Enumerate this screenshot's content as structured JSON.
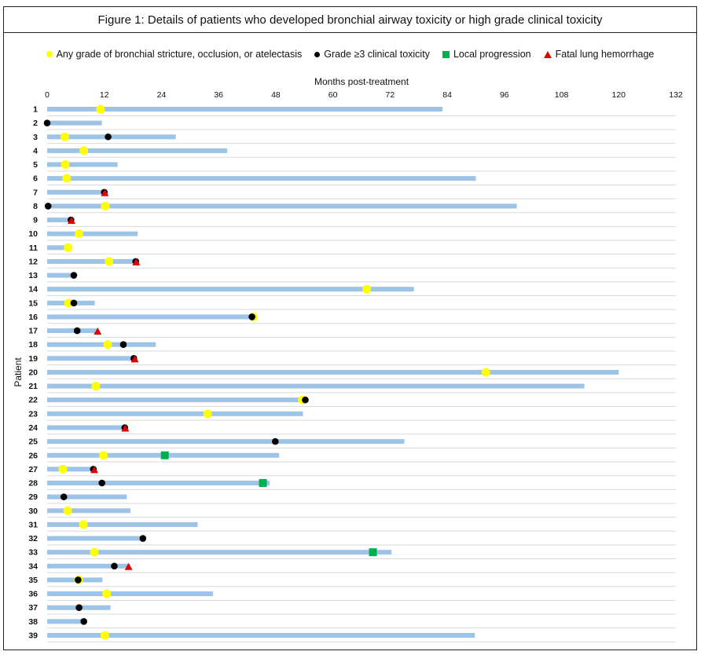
{
  "title": "Figure 1: Details of patients who developed bronchial airway toxicity or high grade clinical toxicity",
  "legend": {
    "items": [
      {
        "label": "Any grade of bronchial stricture, occlusion, or atelectasis",
        "color": "#ffff00",
        "shape": "circle"
      },
      {
        "label": "Grade ≥3 clinical toxicity",
        "color": "#000000",
        "shape": "circle"
      },
      {
        "label": "Local progression",
        "color": "#00b050",
        "shape": "square"
      },
      {
        "label": "Fatal lung hemorrhage",
        "color": "#e00000",
        "shape": "triangle"
      }
    ]
  },
  "chart_data": {
    "type": "bar",
    "orientation": "horizontal",
    "xlabel": "Months post-treatment",
    "ylabel": "Patient",
    "xlim": [
      0,
      132
    ],
    "xticks": [
      "0",
      "12",
      "24",
      "36",
      "48",
      "60",
      "72",
      "84",
      "96",
      "108",
      "120",
      "132"
    ],
    "x_axis_position": "top",
    "bar_color": "#9dc3e6",
    "gridlines": true,
    "patients": [
      {
        "id": "1",
        "followup": 83,
        "stricture": [
          11.2
        ]
      },
      {
        "id": "2",
        "followup": 11.5,
        "grade3": [
          0
        ]
      },
      {
        "id": "3",
        "followup": 27,
        "stricture": [
          3.7
        ],
        "grade3": [
          12.8
        ]
      },
      {
        "id": "4",
        "followup": 37.8,
        "stricture": [
          7.7
        ]
      },
      {
        "id": "5",
        "followup": 14.8,
        "stricture": [
          3.8
        ]
      },
      {
        "id": "6",
        "followup": 90,
        "stricture": [
          4.1
        ]
      },
      {
        "id": "7",
        "followup": 12.2,
        "grade3": [
          12
        ],
        "hemorrhage": [
          12.1
        ]
      },
      {
        "id": "8",
        "followup": 98.6,
        "stricture": [
          12.2
        ],
        "grade3": [
          0.2
        ]
      },
      {
        "id": "9",
        "followup": 5.2,
        "grade3": [
          5
        ],
        "hemorrhage": [
          5.1
        ]
      },
      {
        "id": "10",
        "followup": 19,
        "stricture": [
          6.7
        ]
      },
      {
        "id": "11",
        "followup": 4.5,
        "stricture": [
          4.4
        ]
      },
      {
        "id": "12",
        "followup": 18.7,
        "stricture": [
          13
        ],
        "grade3": [
          18.6
        ],
        "hemorrhage": [
          18.7
        ]
      },
      {
        "id": "13",
        "followup": 5.6,
        "grade3": [
          5.6
        ]
      },
      {
        "id": "14",
        "followup": 77,
        "stricture": [
          67.1
        ]
      },
      {
        "id": "15",
        "followup": 10,
        "stricture": [
          4.5
        ],
        "grade3": [
          5.6
        ]
      },
      {
        "id": "16",
        "followup": 43.2,
        "stricture": [
          43.3
        ],
        "grade3": [
          43
        ]
      },
      {
        "id": "17",
        "followup": 10.8,
        "grade3": [
          6.3
        ],
        "hemorrhage": [
          10.6
        ]
      },
      {
        "id": "18",
        "followup": 22.8,
        "stricture": [
          12.7
        ],
        "grade3": [
          16
        ]
      },
      {
        "id": "19",
        "followup": 18.4,
        "grade3": [
          18.2
        ],
        "hemorrhage": [
          18.4
        ]
      },
      {
        "id": "20",
        "followup": 120,
        "stricture": [
          92.1
        ]
      },
      {
        "id": "21",
        "followup": 112.8,
        "stricture": [
          10.2
        ]
      },
      {
        "id": "22",
        "followup": 53.7,
        "stricture": [
          53.6
        ],
        "grade3": [
          54.2
        ]
      },
      {
        "id": "23",
        "followup": 53.7,
        "stricture": [
          33.7
        ]
      },
      {
        "id": "24",
        "followup": 16.4,
        "grade3": [
          16.3
        ],
        "hemorrhage": [
          16.4
        ]
      },
      {
        "id": "25",
        "followup": 75,
        "grade3": [
          47.9
        ]
      },
      {
        "id": "26",
        "followup": 48.7,
        "stricture": [
          11.8
        ],
        "progression": [
          24.7
        ]
      },
      {
        "id": "27",
        "followup": 10,
        "stricture": [
          3.3
        ],
        "grade3": [
          9.7
        ],
        "hemorrhage": [
          9.9
        ]
      },
      {
        "id": "28",
        "followup": 46.7,
        "grade3": [
          11.5
        ],
        "progression": [
          45.3
        ]
      },
      {
        "id": "29",
        "followup": 16.7,
        "grade3": [
          3.5
        ]
      },
      {
        "id": "30",
        "followup": 17.5,
        "stricture": [
          4.3
        ]
      },
      {
        "id": "31",
        "followup": 31.6,
        "stricture": [
          7.6
        ]
      },
      {
        "id": "32",
        "followup": 20.1,
        "grade3": [
          20.1
        ]
      },
      {
        "id": "33",
        "followup": 72.3,
        "stricture": [
          9.9
        ],
        "progression": [
          68.4
        ]
      },
      {
        "id": "34",
        "followup": 17.3,
        "grade3": [
          14.1
        ],
        "hemorrhage": [
          17.1
        ]
      },
      {
        "id": "35",
        "followup": 11.6,
        "stricture": [
          6.6
        ],
        "grade3": [
          6.5
        ]
      },
      {
        "id": "36",
        "followup": 34.8,
        "stricture": [
          12.5
        ]
      },
      {
        "id": "37",
        "followup": 13.3,
        "grade3": [
          6.7
        ]
      },
      {
        "id": "38",
        "followup": 7.3,
        "grade3": [
          7.7
        ]
      },
      {
        "id": "39",
        "followup": 89.8,
        "stricture": [
          12.1
        ]
      }
    ]
  }
}
